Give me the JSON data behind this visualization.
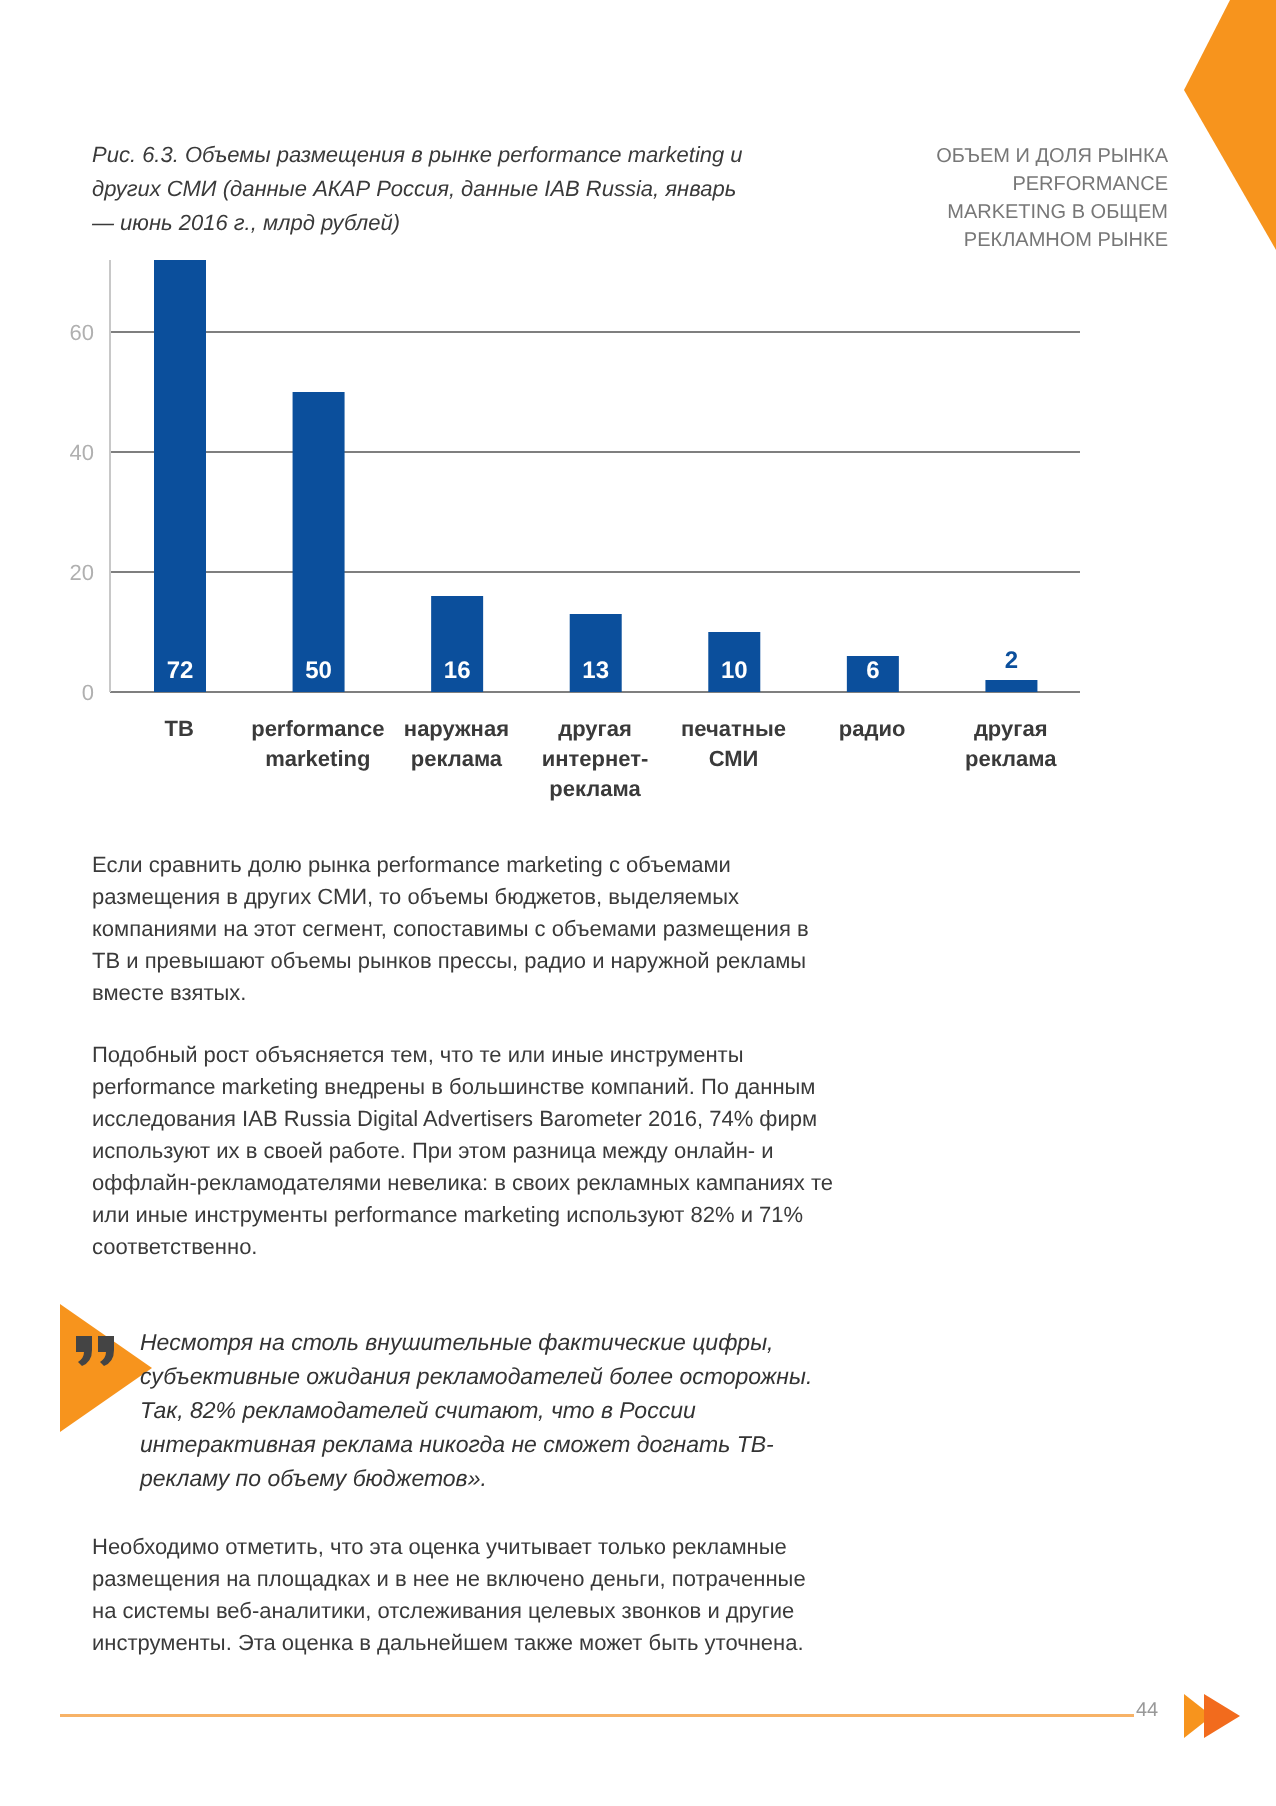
{
  "chart_data": {
    "type": "bar",
    "title": "Рис. 6.3. Объемы размещения в рынке performance marketing и других СМИ (данные АКАР Россия, данные IAB Russia, январь — июнь 2016 г., млрд рублей)",
    "subtitle": "ОБЪЕМ И ДОЛЯ РЫНКА PERFORMANCE MARKETING В ОБЩЕМ РЕКЛАМНОМ РЫНКЕ",
    "categories": [
      "ТВ",
      "performance marketing",
      "наружная реклама",
      "другая интернет-реклама",
      "печатные СМИ",
      "радио",
      "другая реклама"
    ],
    "values": [
      72,
      50,
      16,
      13,
      10,
      6,
      2
    ],
    "color": "#0b4f9c",
    "ylim": [
      0,
      72
    ],
    "yticks": [
      0,
      20,
      40,
      60
    ],
    "grid": "y",
    "data_labels": true,
    "annotations": [
      "Если сравнить долю рынка performance marketing с объемами размещения в других СМИ, то объемы бюджетов, выделяемых компаниями на этот сегмент, сопоставимы с объемами размещения в ТВ и превышают объемы рынков прессы, радио и наружной рекламы вместе взятых.",
      "Подобный рост объясняется тем, что те или иные инструменты performance marketing внедрены в большинстве компаний. По данным исследования IAB Russia Digital Advertisers Barometer 2016, 74% фирм используют их в своей работе. При этом разница между онлайн- и оффлайн-рекламодателями невелика: в своих рекламных кампаниях те или иные инструменты performance marketing используют 82% и 71% соответственно.",
      "Несмотря на столь внушительные фактические цифры, субъективные ожидания рекламодателей более осторожны. Так, 82% рекламодателей считают, что в России интерактивная реклама никогда не сможет догнать ТВ-рекламу по объему бюджетов».",
      "Необходимо отметить, что эта оценка учитывает только рекламные размещения на площадках и в нее не включено деньги, потраченные на системы веб-аналитики, отслеживания целевых звонков и другие инструменты. Эта оценка в дальнейшем также может быть уточнена.",
      "44"
    ]
  }
}
